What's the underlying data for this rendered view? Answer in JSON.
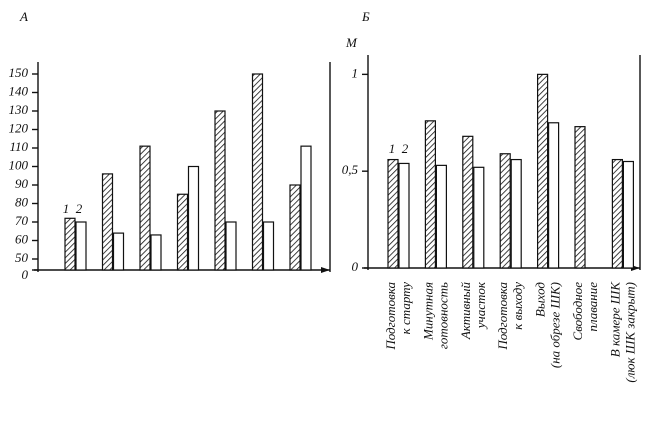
{
  "chart_data": [
    {
      "type": "bar",
      "title": "А",
      "broken_axis": true,
      "categories": [
        null,
        null,
        null,
        null,
        null,
        null,
        null
      ],
      "series": [
        {
          "name": "1",
          "color": "url(#hatch)",
          "values": [
            72,
            96,
            111,
            85,
            130,
            150,
            90
          ]
        },
        {
          "name": "2",
          "color": "#ffffff",
          "values": [
            70,
            64,
            63,
            100,
            70,
            70,
            111
          ]
        }
      ],
      "ylim": [
        0,
        150
      ],
      "yticks": [
        0,
        50,
        60,
        70,
        80,
        90,
        100,
        110,
        120,
        130,
        140,
        150
      ]
    },
    {
      "type": "bar",
      "title": "Б",
      "y_label": "М",
      "categories": [
        [
          "Подготовка",
          "к старту"
        ],
        [
          "Минутная",
          "готовность"
        ],
        [
          "Активный",
          "участок"
        ],
        [
          "Подготовка",
          "к выходу"
        ],
        [
          "Выход",
          "(на обрезе ШК)"
        ],
        [
          "Свободное",
          "плавание"
        ],
        [
          "В камере ШК",
          "(люк ШК закрыт)"
        ]
      ],
      "series": [
        {
          "name": "1",
          "color": "url(#hatch)",
          "values": [
            0.56,
            0.76,
            0.68,
            0.59,
            1.0,
            0.73,
            0.56
          ]
        },
        {
          "name": "2",
          "color": "#ffffff",
          "values": [
            0.54,
            0.53,
            0.52,
            0.56,
            0.75,
            null,
            0.55
          ]
        }
      ],
      "ylim": [
        0,
        1.1
      ],
      "yticks": [
        0,
        {
          "value": 0.5,
          "label": "0,5"
        },
        1
      ]
    }
  ]
}
